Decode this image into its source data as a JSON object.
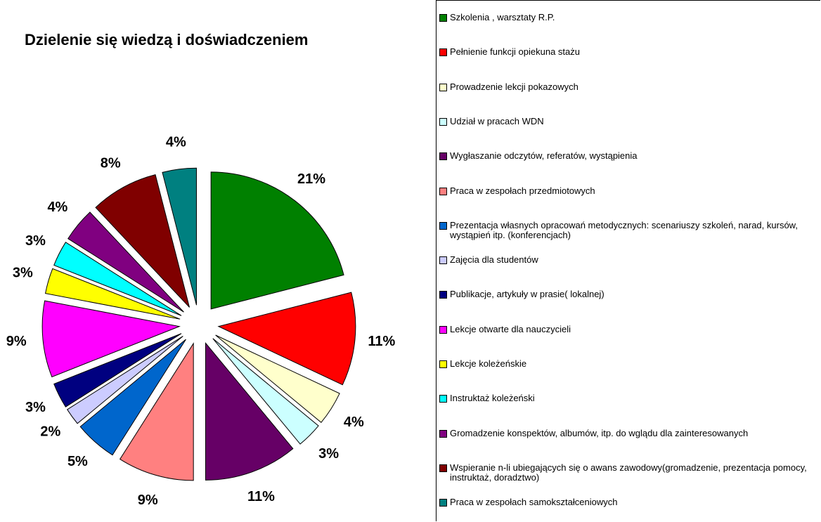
{
  "chart_data": {
    "type": "pie",
    "title": "Dzielenie się wiedzą i doświadczeniem",
    "categories": [
      "Szkolenia , warsztaty R.P.",
      "Pełnienie funkcji opiekuna stażu",
      "Prowadzenie lekcji pokazowych",
      "Udział w pracach WDN",
      "Wygłaszanie odczytów, referatów, wystąpienia",
      "Praca w zespołach przedmiotowych",
      "Prezentacja własnych opracowań metodycznych: scenariuszy szkoleń, narad, kursów, wystąpień itp. (konferencjach)",
      "Zajęcia dla studentów",
      "Publikacje, artykuły w prasie( lokalnej)",
      "Lekcje otwarte dla nauczycieli",
      "Lekcje koleżeńskie",
      "Instruktaż koleżeński",
      "Gromadzenie konspektów, albumów, itp. do wglądu dla zainteresowanych",
      "Wspieranie n-li ubiegających się o awans zawodowy(gromadzenie, prezentacja pomocy,  instruktaż, doradztwo)",
      "Praca w zespołach samokształceniowych"
    ],
    "values": [
      21,
      11,
      4,
      3,
      11,
      9,
      5,
      2,
      3,
      9,
      3,
      3,
      4,
      8,
      4
    ],
    "value_labels": [
      "21%",
      "11%",
      "4%",
      "3%",
      "11%",
      "9%",
      "5%",
      "2%",
      "3%",
      "9%",
      "3%",
      "3%",
      "4%",
      "8%",
      "4%"
    ],
    "colors": [
      "#008000",
      "#ff0000",
      "#ffffcc",
      "#ccffff",
      "#660066",
      "#ff8080",
      "#0066cc",
      "#ccccff",
      "#000080",
      "#ff00ff",
      "#ffff00",
      "#00ffff",
      "#800080",
      "#800000",
      "#008080"
    ],
    "legend": "right"
  }
}
